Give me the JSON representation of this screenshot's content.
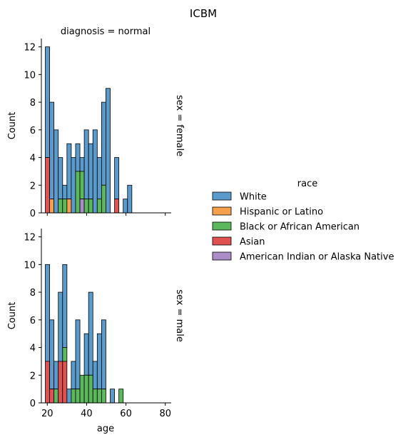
{
  "chart_data": {
    "type": "bar",
    "subtype": "stacked-histogram",
    "title": "ICBM",
    "column_title": "diagnosis = normal",
    "x_label": "age",
    "y_label": "Count",
    "bin_start": 19,
    "bin_width": 2.2,
    "xlim": [
      17,
      83
    ],
    "x_ticks": [
      20,
      40,
      60,
      80
    ],
    "ylim": [
      0,
      12.6
    ],
    "y_ticks": [
      0,
      2,
      4,
      6,
      8,
      10,
      12
    ],
    "legend": {
      "title": "race",
      "placement": "right",
      "entries": [
        "White",
        "Hispanic or Latino",
        "Black or African American",
        "Asian",
        "American Indian or Alaska Native"
      ]
    },
    "colors": {
      "White": "#5b9bcb",
      "Hispanic or Latino": "#f5a04d",
      "Black or African American": "#5cb85c",
      "Asian": "#e05252",
      "American Indian or Alaska Native": "#ab8bc8"
    },
    "series_order": [
      "White",
      "Hispanic or Latino",
      "Black or African American",
      "Asian",
      "American Indian or Alaska Native"
    ],
    "facets": [
      {
        "row_label": "sex = female",
        "totals": [
          12,
          8,
          6,
          4,
          2,
          5,
          4,
          5,
          4,
          6,
          5,
          6,
          4,
          8,
          9,
          0,
          4,
          0,
          1,
          2
        ],
        "stacks": [
          {
            "Asian": 4
          },
          {
            "Hispanic or Latino": 1
          },
          {},
          {
            "Black or African American": 1
          },
          {
            "Black or African American": 1
          },
          {
            "Hispanic or Latino": 1
          },
          {},
          {
            "Black or African American": 3
          },
          {
            "American Indian or Alaska Native": 1,
            "Black or African American": 2
          },
          {
            "Black or African American": 1
          },
          {
            "Black or African American": 1
          },
          {},
          {
            "Black or African American": 1
          },
          {
            "Black or African American": 2
          },
          {},
          {},
          {
            "Asian": 1
          },
          {},
          {},
          {}
        ]
      },
      {
        "row_label": "sex = male",
        "totals": [
          10,
          6,
          3,
          8,
          10,
          1,
          3,
          6,
          2,
          5,
          8,
          3,
          5,
          6,
          0,
          1,
          0,
          1,
          0,
          0
        ],
        "stacks": [
          {
            "Asian": 3
          },
          {
            "Asian": 1
          },
          {
            "Black or African American": 1
          },
          {
            "Asian": 3
          },
          {
            "Asian": 3,
            "Black or African American": 1
          },
          {},
          {
            "Black or African American": 1
          },
          {
            "Black or African American": 1
          },
          {
            "Black or African American": 2
          },
          {
            "Black or African American": 2
          },
          {
            "Black or African American": 2
          },
          {
            "Black or African American": 1
          },
          {
            "Black or African American": 1
          },
          {
            "Black or African American": 1
          },
          {},
          {},
          {},
          {
            "Black or African American": 1
          },
          {},
          {}
        ]
      }
    ]
  }
}
